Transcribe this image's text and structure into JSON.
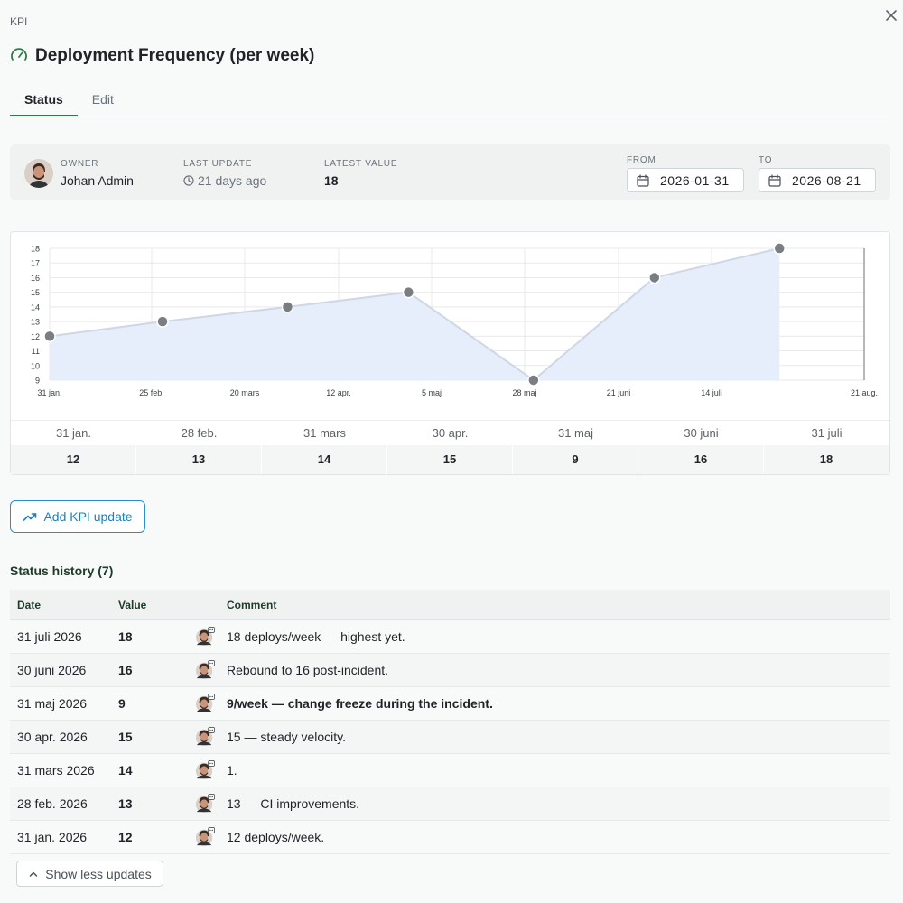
{
  "breadcrumb": "KPI",
  "title": "Deployment Frequency (per week)",
  "tabs": [
    {
      "label": "Status"
    },
    {
      "label": "Edit"
    }
  ],
  "meta": {
    "owner_label": "OWNER",
    "owner_name": "Johan Admin",
    "last_update_label": "LAST UPDATE",
    "last_update_value": "21 days ago",
    "latest_value_label": "LATEST VALUE",
    "latest_value": "18",
    "from_label": "FROM",
    "from_value": "2026-01-31",
    "to_label": "TO",
    "to_value": "2026-08-21"
  },
  "colors": {
    "accent": "#2f7a49",
    "link": "#1f7fc0",
    "area_fill": "#e6edfb",
    "line": "#cfd6e4",
    "point": "#7a7e82"
  },
  "chart_data": {
    "type": "area",
    "x": [
      "2026-01-31",
      "2026-02-28",
      "2026-03-31",
      "2026-04-30",
      "2026-05-31",
      "2026-06-30",
      "2026-07-31"
    ],
    "values": [
      12,
      13,
      14,
      15,
      9,
      16,
      18
    ],
    "x_ticks": [
      "31 jan.",
      "25 feb.",
      "20 mars",
      "12 apr.",
      "5 maj",
      "28 maj",
      "21 juni",
      "14 juli",
      "21 aug."
    ],
    "xlim": [
      "2026-01-31",
      "2026-08-21"
    ],
    "y_ticks": [
      9,
      10,
      11,
      12,
      13,
      14,
      15,
      16,
      17,
      18
    ],
    "ylim": [
      9,
      18
    ],
    "grid": true
  },
  "summary": {
    "dates": [
      "31 jan.",
      "28 feb.",
      "31 mars",
      "30 apr.",
      "31 maj",
      "30 juni",
      "31 juli"
    ],
    "values": [
      "12",
      "13",
      "14",
      "15",
      "9",
      "16",
      "18"
    ]
  },
  "add_button_label": "Add KPI update",
  "history": {
    "title": "Status history (7)",
    "headers": {
      "date": "Date",
      "value": "Value",
      "comment": "Comment"
    },
    "rows": [
      {
        "date": "31 juli 2026",
        "value": "18",
        "comment": "18 deploys/week — highest yet.",
        "bold": false
      },
      {
        "date": "30 juni 2026",
        "value": "16",
        "comment": "Rebound to 16 post-incident.",
        "bold": false
      },
      {
        "date": "31 maj 2026",
        "value": "9",
        "comment": "9/week — change freeze during the incident.",
        "bold": true
      },
      {
        "date": "30 apr. 2026",
        "value": "15",
        "comment": "15 — steady velocity.",
        "bold": false
      },
      {
        "date": "31 mars 2026",
        "value": "14",
        "comment": "1.",
        "bold": false
      },
      {
        "date": "28 feb. 2026",
        "value": "13",
        "comment": "13 — CI improvements.",
        "bold": false
      },
      {
        "date": "31 jan. 2026",
        "value": "12",
        "comment": "12 deploys/week.",
        "bold": false
      }
    ]
  },
  "show_less_label": "Show less updates"
}
